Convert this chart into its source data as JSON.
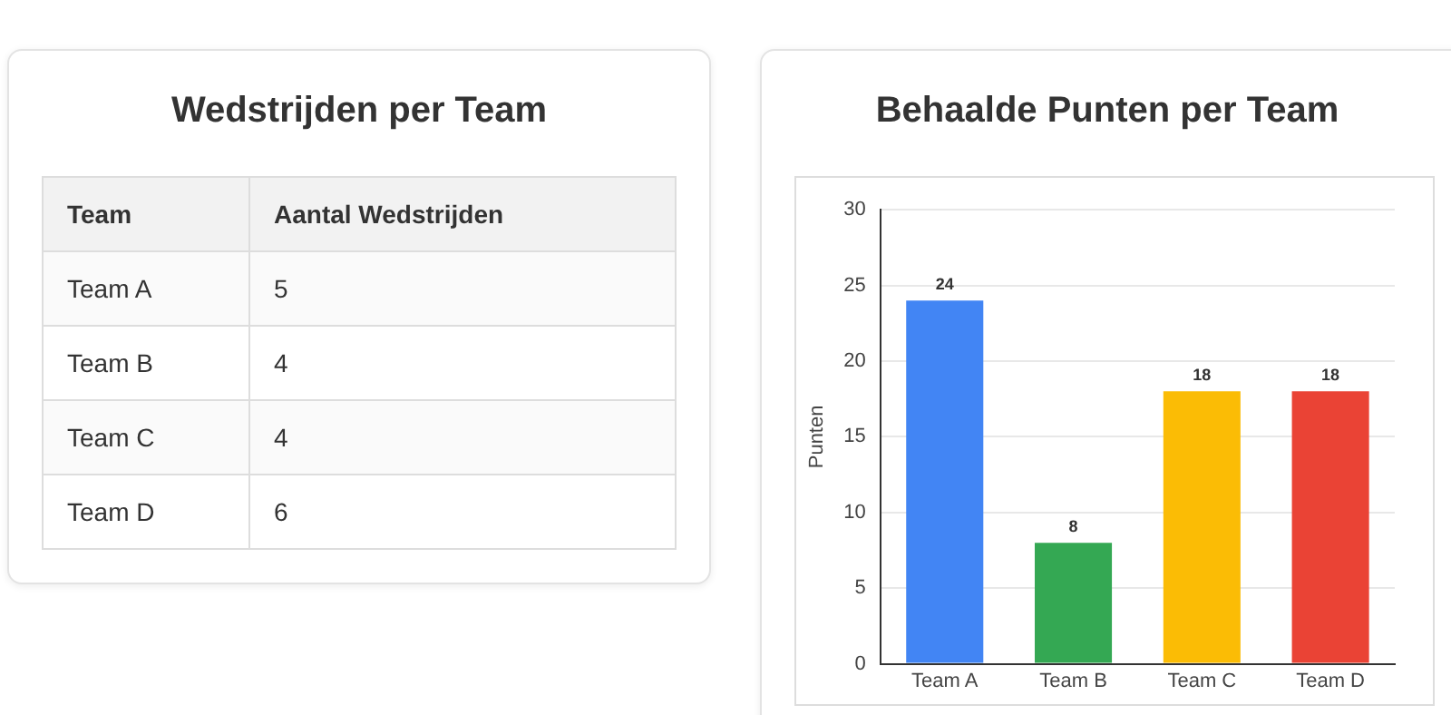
{
  "chart_data": [
    {
      "type": "other",
      "title": "Wedstrijden per Team",
      "xlabel": "Team",
      "ylabel": "Aantal Wedstrijden",
      "categories": [
        "Team A",
        "Team B",
        "Team C",
        "Team D"
      ],
      "values": [
        5,
        4,
        4,
        6
      ],
      "data_labels": true
    },
    {
      "type": "bar",
      "title": "Behaalde Punten per Team",
      "ylabel": "Punten",
      "categories": [
        "Team A",
        "Team B",
        "Team C",
        "Team D"
      ],
      "values": [
        24,
        8,
        18,
        18
      ],
      "colors": [
        "#4285f4",
        "#34a853",
        "#fbbc05",
        "#ea4335"
      ],
      "ylim": [
        0,
        30
      ],
      "yticks": [
        0,
        5,
        10,
        15,
        20,
        25,
        30
      ],
      "grid": "y",
      "legend": false,
      "data_labels": true
    }
  ]
}
